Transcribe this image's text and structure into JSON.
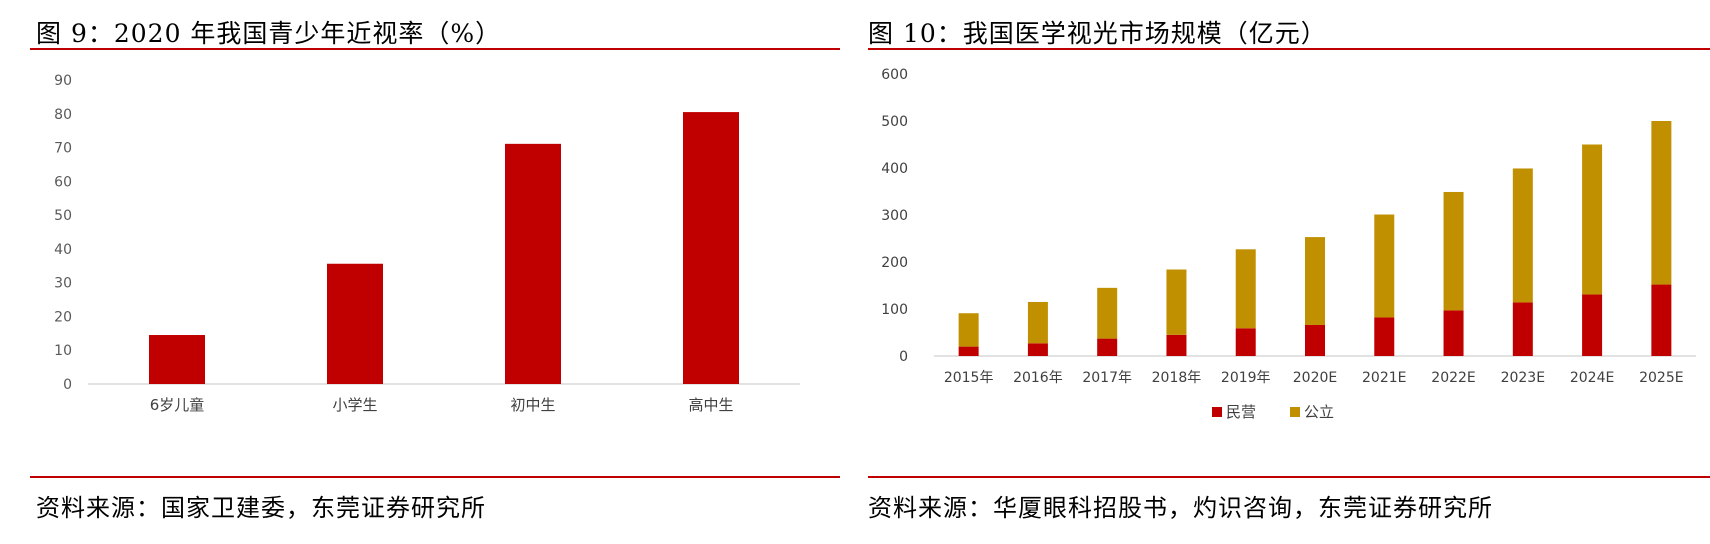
{
  "left": {
    "title": "图 9：2020 年我国青少年近视率（%）",
    "source": "资料来源：国家卫建委，东莞证券研究所"
  },
  "right": {
    "title": "图 10：我国医学视光市场规模（亿元）",
    "source": "资料来源：华厦眼科招股书，灼识咨询，东莞证券研究所"
  },
  "colors": {
    "rule": "#c00000",
    "bar_red": "#c00000",
    "bar_gold": "#c09000",
    "axis": "#d9d9d9"
  },
  "chart_data": [
    {
      "type": "bar",
      "title": "图 9：2020 年我国青少年近视率（%）",
      "categories": [
        "6岁儿童",
        "小学生",
        "初中生",
        "高中生"
      ],
      "values": [
        14.5,
        35.6,
        71.1,
        80.5
      ],
      "ylim": [
        0,
        90
      ],
      "yticks": [
        0,
        10,
        20,
        30,
        40,
        50,
        60,
        70,
        80,
        90
      ],
      "grid": false,
      "legend": "none"
    },
    {
      "type": "bar",
      "stacked": true,
      "title": "图 10：我国医学视光市场规模（亿元）",
      "categories": [
        "2015年",
        "2016年",
        "2017年",
        "2018年",
        "2019年",
        "2020E",
        "2021E",
        "2022E",
        "2023E",
        "2024E",
        "2025E"
      ],
      "series": [
        {
          "name": "民营",
          "values": [
            20,
            27,
            37,
            45,
            59,
            66,
            82,
            97,
            114,
            131,
            152
          ]
        },
        {
          "name": "公立",
          "values": [
            71,
            88,
            108,
            139,
            168,
            187,
            219,
            252,
            285,
            319,
            348
          ]
        }
      ],
      "ylim": [
        0,
        600
      ],
      "yticks": [
        0,
        100,
        200,
        300,
        400,
        500,
        600
      ],
      "grid": false,
      "legend": "bottom"
    }
  ]
}
